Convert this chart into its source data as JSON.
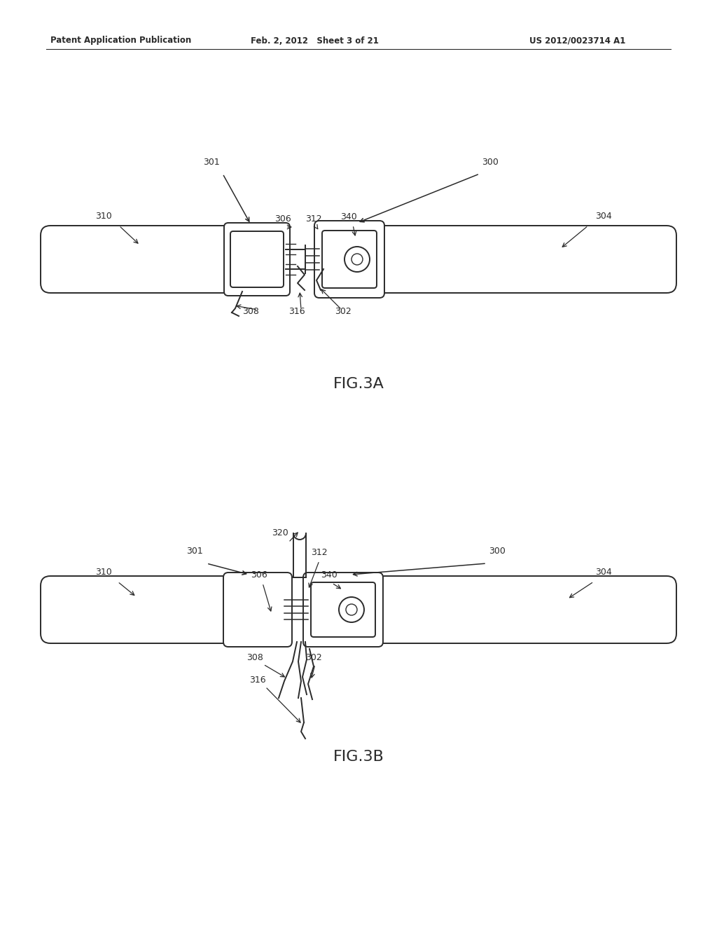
{
  "bg_color": "#ffffff",
  "line_color": "#2a2a2a",
  "header_left": "Patent Application Publication",
  "header_center": "Feb. 2, 2012   Sheet 3 of 21",
  "header_right": "US 2012/0023714 A1",
  "fig3a_label": "FIG.3A",
  "fig3b_label": "FIG.3B",
  "figsize": [
    10.24,
    13.2
  ],
  "dpi": 100
}
